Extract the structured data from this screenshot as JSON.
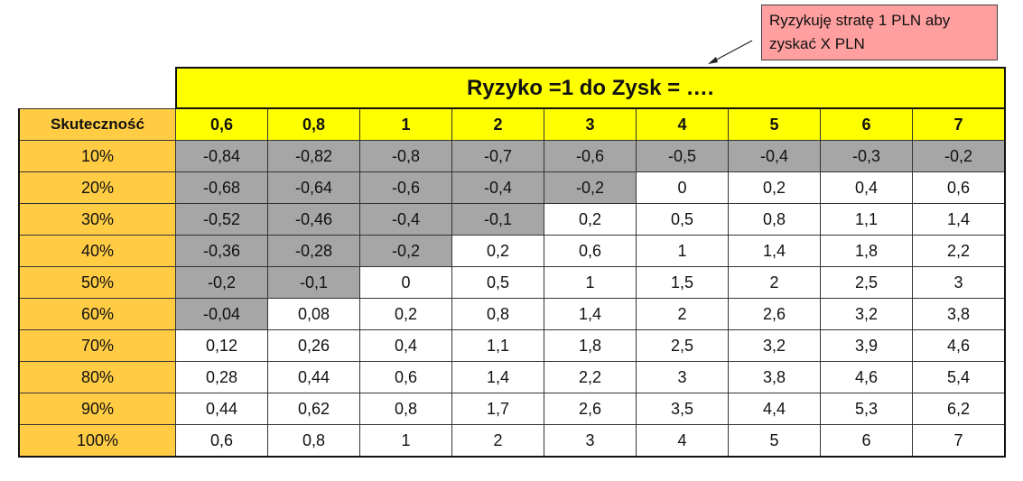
{
  "callout": {
    "text_line1": "Ryzykuję stratę 1 PLN aby",
    "text_line2": "zyskać X PLN"
  },
  "table": {
    "title": "Ryzyko =1 do Zysk = ….",
    "row_header_label": "Skuteczność",
    "columns": [
      "0,6",
      "0,8",
      "1",
      "2",
      "3",
      "4",
      "5",
      "6",
      "7"
    ],
    "rows": [
      {
        "label": "10%",
        "values": [
          "-0,84",
          "-0,82",
          "-0,8",
          "-0,7",
          "-0,6",
          "-0,5",
          "-0,4",
          "-0,3",
          "-0,2"
        ]
      },
      {
        "label": "20%",
        "values": [
          "-0,68",
          "-0,64",
          "-0,6",
          "-0,4",
          "-0,2",
          "0",
          "0,2",
          "0,4",
          "0,6"
        ]
      },
      {
        "label": "30%",
        "values": [
          "-0,52",
          "-0,46",
          "-0,4",
          "-0,1",
          "0,2",
          "0,5",
          "0,8",
          "1,1",
          "1,4"
        ]
      },
      {
        "label": "40%",
        "values": [
          "-0,36",
          "-0,28",
          "-0,2",
          "0,2",
          "0,6",
          "1",
          "1,4",
          "1,8",
          "2,2"
        ]
      },
      {
        "label": "50%",
        "values": [
          "-0,2",
          "-0,1",
          "0",
          "0,5",
          "1",
          "1,5",
          "2",
          "2,5",
          "3"
        ]
      },
      {
        "label": "60%",
        "values": [
          "-0,04",
          "0,08",
          "0,2",
          "0,8",
          "1,4",
          "2",
          "2,6",
          "3,2",
          "3,8"
        ]
      },
      {
        "label": "70%",
        "values": [
          "0,12",
          "0,26",
          "0,4",
          "1,1",
          "1,8",
          "2,5",
          "3,2",
          "3,9",
          "4,6"
        ]
      },
      {
        "label": "80%",
        "values": [
          "0,28",
          "0,44",
          "0,6",
          "1,4",
          "2,2",
          "3",
          "3,8",
          "4,6",
          "5,4"
        ]
      },
      {
        "label": "90%",
        "values": [
          "0,44",
          "0,62",
          "0,8",
          "1,7",
          "2,6",
          "3,5",
          "4,4",
          "5,3",
          "6,2"
        ]
      },
      {
        "label": "100%",
        "values": [
          "0,6",
          "0,8",
          "1",
          "2",
          "3",
          "4",
          "5",
          "6",
          "7"
        ]
      }
    ]
  },
  "colors": {
    "title_bg": "#FFFF00",
    "label_bg": "#FFCC44",
    "negative_bg": "#A6A6A6",
    "callout_bg": "#FF9F9F"
  }
}
